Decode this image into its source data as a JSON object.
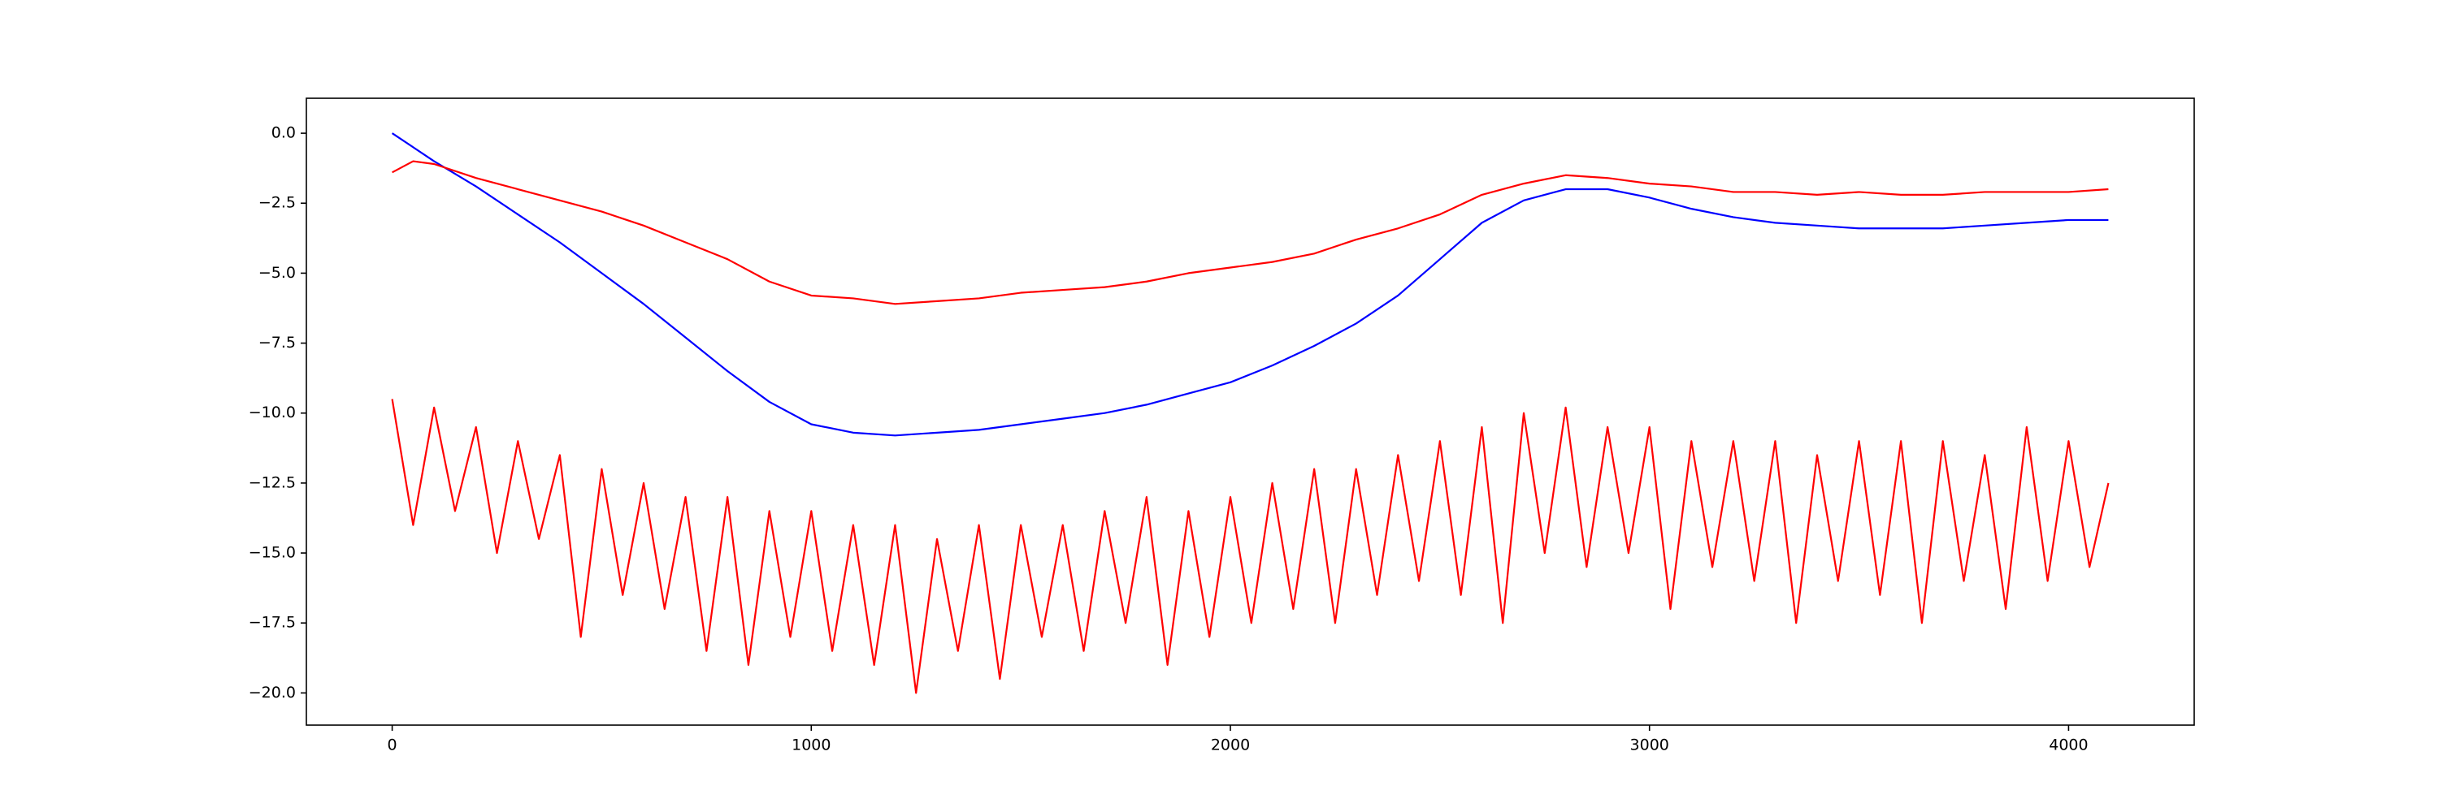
{
  "chart_data": {
    "type": "line",
    "xlim": [
      -204.75,
      4299.75
    ],
    "xticks": [
      0,
      1000,
      2000,
      3000,
      4000
    ],
    "ylim": [
      -21.15,
      1.25
    ],
    "yticks": [
      {
        "value": 0,
        "label": "0.0"
      },
      {
        "value": -2.5,
        "label": "−2.5"
      },
      {
        "value": -5,
        "label": "−5.0"
      },
      {
        "value": -7.5,
        "label": "−7.5"
      },
      {
        "value": -10,
        "label": "−10.0"
      },
      {
        "value": -12.5,
        "label": "−12.5"
      },
      {
        "value": -15,
        "label": "−15.0"
      },
      {
        "value": -17.5,
        "label": "−17.5"
      },
      {
        "value": -20,
        "label": "−20.0"
      }
    ],
    "series": [
      {
        "color": "#ff0000",
        "x": [
          0,
          50,
          100,
          150,
          200,
          250,
          300,
          350,
          400,
          450,
          500,
          550,
          600,
          650,
          700,
          750,
          800,
          850,
          900,
          950,
          1000,
          1050,
          1100,
          1150,
          1200,
          1250,
          1300,
          1350,
          1400,
          1450,
          1500,
          1550,
          1600,
          1650,
          1700,
          1750,
          1800,
          1850,
          1900,
          1950,
          2000,
          2050,
          2100,
          2150,
          2200,
          2250,
          2300,
          2350,
          2400,
          2450,
          2500,
          2550,
          2600,
          2650,
          2700,
          2750,
          2800,
          2850,
          2900,
          2950,
          3000,
          3050,
          3100,
          3150,
          3200,
          3250,
          3300,
          3350,
          3400,
          3450,
          3500,
          3550,
          3600,
          3650,
          3700,
          3750,
          3800,
          3850,
          3900,
          3950,
          4000,
          4050,
          4095
        ],
        "values": [
          -9.5,
          -14,
          -9.8,
          -13.5,
          -10.5,
          -15,
          -11,
          -14.5,
          -11.5,
          -18,
          -12,
          -16.5,
          -12.5,
          -17,
          -13,
          -18.5,
          -13,
          -19,
          -13.5,
          -18,
          -13.5,
          -18.5,
          -14,
          -19,
          -14,
          -20,
          -14.5,
          -18.5,
          -14,
          -19.5,
          -14,
          -18,
          -14,
          -18.5,
          -13.5,
          -17.5,
          -13,
          -19,
          -13.5,
          -18,
          -13,
          -17.5,
          -12.5,
          -17,
          -12,
          -17.5,
          -12,
          -16.5,
          -11.5,
          -16,
          -11,
          -16.5,
          -10.5,
          -17.5,
          -10,
          -15,
          -9.8,
          -15.5,
          -10.5,
          -15,
          -10.5,
          -17,
          -11,
          -15.5,
          -11,
          -16,
          -11,
          -17.5,
          -11.5,
          -16,
          -11,
          -16.5,
          -11,
          -17.5,
          -11,
          -16,
          -11.5,
          -17,
          -10.5,
          -16,
          -11,
          -15.5,
          -12.5
        ]
      },
      {
        "color": "#0000ff",
        "x": [
          0,
          100,
          200,
          300,
          400,
          500,
          600,
          700,
          800,
          900,
          1000,
          1100,
          1200,
          1300,
          1400,
          1500,
          1600,
          1700,
          1800,
          1900,
          2000,
          2100,
          2200,
          2300,
          2400,
          2500,
          2600,
          2700,
          2800,
          2900,
          3000,
          3100,
          3200,
          3300,
          3400,
          3500,
          3600,
          3700,
          3800,
          3900,
          4000,
          4095
        ],
        "values": [
          0,
          -1,
          -1.9,
          -2.9,
          -3.9,
          -5,
          -6.1,
          -7.3,
          -8.5,
          -9.6,
          -10.4,
          -10.7,
          -10.8,
          -10.7,
          -10.6,
          -10.4,
          -10.2,
          -10,
          -9.7,
          -9.3,
          -8.9,
          -8.3,
          -7.6,
          -6.8,
          -5.8,
          -4.5,
          -3.2,
          -2.4,
          -2,
          -2,
          -2.3,
          -2.7,
          -3,
          -3.2,
          -3.3,
          -3.4,
          -3.4,
          -3.4,
          -3.3,
          -3.2,
          -3.1,
          -3.1
        ]
      },
      {
        "color": "#ff0000",
        "x": [
          0,
          50,
          100,
          200,
          300,
          400,
          500,
          600,
          700,
          800,
          900,
          1000,
          1100,
          1200,
          1300,
          1400,
          1500,
          1600,
          1700,
          1800,
          1900,
          2000,
          2100,
          2200,
          2300,
          2400,
          2500,
          2600,
          2700,
          2800,
          2900,
          3000,
          3100,
          3200,
          3300,
          3400,
          3500,
          3600,
          3700,
          3800,
          3900,
          4000,
          4095
        ],
        "values": [
          -1.4,
          -1,
          -1.1,
          -1.6,
          -2,
          -2.4,
          -2.8,
          -3.3,
          -3.9,
          -4.5,
          -5.3,
          -5.8,
          -5.9,
          -6.1,
          -6,
          -5.9,
          -5.7,
          -5.6,
          -5.5,
          -5.3,
          -5,
          -4.8,
          -4.6,
          -4.3,
          -3.8,
          -3.4,
          -2.9,
          -2.2,
          -1.8,
          -1.5,
          -1.6,
          -1.8,
          -1.9,
          -2.1,
          -2.1,
          -2.2,
          -2.1,
          -2.2,
          -2.2,
          -2.1,
          -2.1,
          -2.1,
          -2
        ]
      }
    ]
  }
}
